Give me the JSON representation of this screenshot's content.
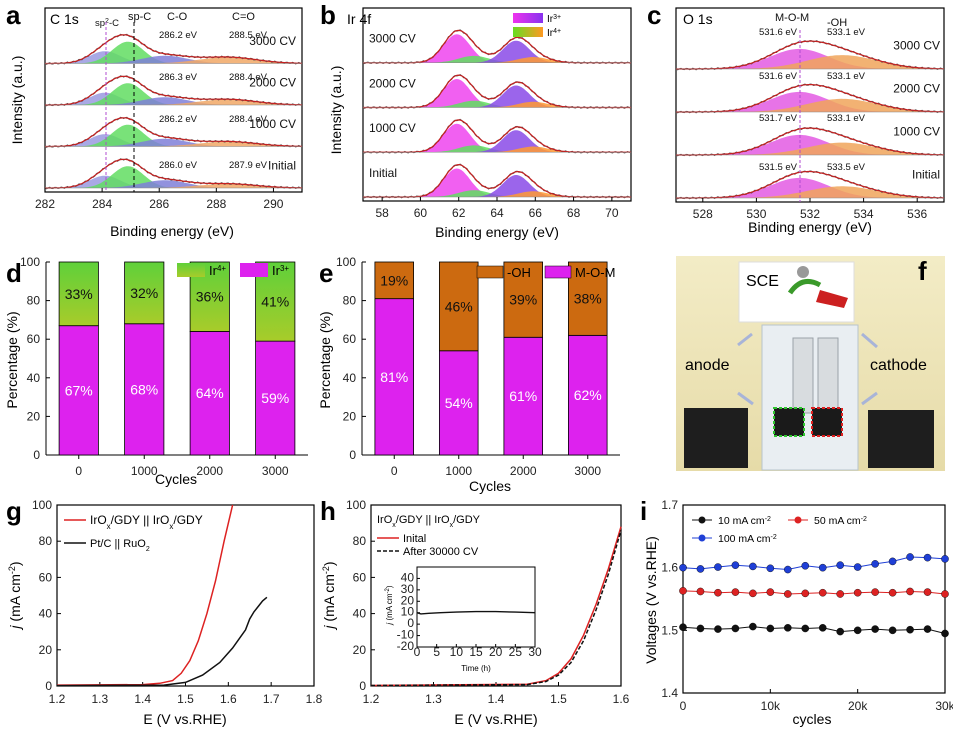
{
  "panels": [
    {
      "id": "a",
      "letter": "a",
      "element": "C 1s",
      "xlabel": "Binding energy (eV)",
      "ylabel": "Intensity (a.u.)",
      "xlim": [
        282,
        291
      ],
      "xticks": [
        "282",
        "284",
        "286",
        "288",
        "290"
      ],
      "x_reversed": false,
      "peaks": [
        "sp2-C",
        "sp-C",
        "C-O",
        "C=O"
      ],
      "spectra": [
        {
          "label": "3000 CV",
          "annotations": [
            "286.2 eV",
            "288.5 eV"
          ]
        },
        {
          "label": "2000 CV",
          "annotations": [
            "286.3 eV",
            "288.4 eV"
          ]
        },
        {
          "label": "1000 CV",
          "annotations": [
            "286.2 eV",
            "288.4 eV"
          ]
        },
        {
          "label": "Initial",
          "annotations": [
            "286.0 eV",
            "287.9 eV"
          ]
        }
      ],
      "peak_colors": [
        "#8a8ad6",
        "#5fd35f",
        "#8a8ad6",
        "#f0a35e"
      ]
    },
    {
      "id": "b",
      "letter": "b",
      "element": "Ir 4f",
      "xlabel": "Binding energy (eV)",
      "ylabel": "Intensity (a.u.)",
      "xlim": [
        57,
        71
      ],
      "xticks": [
        "58",
        "60",
        "62",
        "64",
        "66",
        "68",
        "70"
      ],
      "legend": [
        "Ir3+",
        "Ir4+"
      ],
      "spectra": [
        {
          "label": "3000 CV"
        },
        {
          "label": "2000 CV"
        },
        {
          "label": "1000 CV"
        },
        {
          "label": "Initial"
        }
      ],
      "ir3_colors": [
        "#ee44ee",
        "#8a3ee8"
      ],
      "ir4_colors": [
        "#33dd33",
        "#ff8c1a"
      ]
    },
    {
      "id": "c",
      "letter": "c",
      "element": "O 1s",
      "xlabel": "Binding energy (eV)",
      "ylabel": "",
      "xlim": [
        527,
        537
      ],
      "xticks": [
        "528",
        "530",
        "532",
        "534",
        "536"
      ],
      "peaks": [
        "M-O-M",
        "-OH"
      ],
      "spectra": [
        {
          "label": "3000 CV",
          "annotations": [
            "531.6 eV",
            "533.1 eV"
          ]
        },
        {
          "label": "2000 CV",
          "annotations": [
            "531.6 eV",
            "533.1 eV"
          ]
        },
        {
          "label": "1000 CV",
          "annotations": [
            "531.7 eV",
            "533.1 eV"
          ]
        },
        {
          "label": "Initial",
          "annotations": [
            "531.5 eV",
            "533.5 eV"
          ]
        }
      ]
    }
  ],
  "panel_f": {
    "letter": "f",
    "labels": {
      "sce": "SCE",
      "anode": "anode",
      "cathode": "cathode"
    }
  },
  "panel_letters": {
    "g": "g",
    "h": "h",
    "i": "i"
  },
  "chart_data": [
    {
      "id": "d",
      "type": "bar",
      "stacked": true,
      "categories": [
        "0",
        "1000",
        "2000",
        "3000"
      ],
      "xlabel": "Cycles",
      "ylabel": "Percentage (%)",
      "ylim": [
        0,
        100
      ],
      "yticks": [
        "0",
        "20",
        "40",
        "60",
        "80",
        "100"
      ],
      "series": [
        {
          "name": "Ir3+",
          "values": [
            67,
            68,
            64,
            59
          ],
          "labels": [
            "67%",
            "68%",
            "64%",
            "59%"
          ],
          "color": "#dd22ee"
        },
        {
          "name": "Ir4+",
          "values": [
            33,
            32,
            36,
            41
          ],
          "labels": [
            "33%",
            "32%",
            "36%",
            "41%"
          ],
          "color": "#88cc33"
        }
      ],
      "legend_position": "top"
    },
    {
      "id": "e",
      "type": "bar",
      "stacked": true,
      "categories": [
        "0",
        "1000",
        "2000",
        "3000"
      ],
      "xlabel": "Cycles",
      "ylabel": "Percentage (%)",
      "ylim": [
        0,
        100
      ],
      "yticks": [
        "0",
        "20",
        "40",
        "60",
        "80",
        "100"
      ],
      "series": [
        {
          "name": "M-O-M",
          "values": [
            81,
            54,
            61,
            62
          ],
          "labels": [
            "81%",
            "54%",
            "61%",
            "62%"
          ],
          "color": "#dd22ee"
        },
        {
          "name": "-OH",
          "values": [
            19,
            46,
            39,
            38
          ],
          "labels": [
            "19%",
            "46%",
            "39%",
            "38%"
          ],
          "color": "#cc6a10"
        }
      ],
      "legend_position": "top-right"
    },
    {
      "id": "g",
      "type": "line",
      "xlabel": "E (V vs.RHE)",
      "ylabel": "j (mA cm-2)",
      "xlim": [
        1.2,
        1.8
      ],
      "ylim": [
        0,
        100
      ],
      "xticks": [
        "1.2",
        "1.3",
        "1.4",
        "1.5",
        "1.6",
        "1.7",
        "1.8"
      ],
      "yticks": [
        "0",
        "20",
        "40",
        "60",
        "80",
        "100"
      ],
      "series": [
        {
          "name": "IrOx/GDY || IrOx/GDY",
          "color": "#dd2222",
          "x": [
            1.2,
            1.4,
            1.44,
            1.47,
            1.49,
            1.51,
            1.53,
            1.55,
            1.57,
            1.59,
            1.61
          ],
          "y": [
            0.5,
            0.8,
            1.5,
            3,
            7,
            14,
            25,
            40,
            58,
            80,
            102
          ]
        },
        {
          "name": "Pt/C || RuO2",
          "color": "#111111",
          "x": [
            1.2,
            1.45,
            1.5,
            1.54,
            1.58,
            1.61,
            1.64,
            1.65,
            1.66,
            1.67,
            1.68,
            1.69
          ],
          "y": [
            0.2,
            0.5,
            2,
            6,
            13,
            21,
            31,
            37,
            41,
            44,
            47,
            49
          ]
        }
      ],
      "legend_position": "top-left"
    },
    {
      "id": "h",
      "type": "line",
      "xlabel": "E (V vs.RHE)",
      "ylabel": "j (mA cm-2)",
      "xlim": [
        1.2,
        1.6
      ],
      "ylim": [
        0,
        100
      ],
      "xticks": [
        "1.2",
        "1.3",
        "1.4",
        "1.5",
        "1.6"
      ],
      "yticks": [
        "0",
        "20",
        "40",
        "60",
        "80",
        "100"
      ],
      "legend_title": "IrOx/GDY || IrOx/GDY",
      "series": [
        {
          "name": "Inital",
          "color": "#dd2222",
          "dash": false,
          "x": [
            1.2,
            1.45,
            1.48,
            1.5,
            1.52,
            1.54,
            1.56,
            1.58,
            1.6
          ],
          "y": [
            0.3,
            1,
            3,
            7,
            15,
            28,
            45,
            65,
            88
          ]
        },
        {
          "name": "After 30000 CV",
          "color": "#111111",
          "dash": true,
          "x": [
            1.2,
            1.45,
            1.48,
            1.5,
            1.52,
            1.54,
            1.56,
            1.58,
            1.6
          ],
          "y": [
            0.3,
            0.8,
            2.5,
            6,
            13,
            25,
            42,
            62,
            86
          ]
        }
      ],
      "inset": {
        "xlabel": "Time (h)",
        "ylabel": "j (mA cm-2)",
        "xlim": [
          0,
          30
        ],
        "ylim": [
          -20,
          50
        ],
        "xticks": [
          "0",
          "5",
          "10",
          "15",
          "20",
          "25",
          "30"
        ],
        "yticks": [
          "-20",
          "-10",
          "0",
          "10",
          "20",
          "30",
          "40"
        ],
        "x": [
          0,
          1,
          3,
          6,
          10,
          15,
          20,
          25,
          30
        ],
        "y": [
          10,
          9,
          9.5,
          10,
          10.5,
          11,
          11,
          10.5,
          10
        ]
      }
    },
    {
      "id": "i",
      "type": "scatter",
      "xlabel": "cycles",
      "ylabel": "Voltages (V vs.RHE)",
      "xlim": [
        0,
        30000
      ],
      "ylim": [
        1.4,
        1.7
      ],
      "xticks": [
        "0",
        "10k",
        "20k",
        "30k"
      ],
      "yticks": [
        "1.4",
        "1.5",
        "1.6",
        "1.7"
      ],
      "series": [
        {
          "name": "10 mA cm-2",
          "color": "#111111",
          "x": [
            0,
            2000,
            4000,
            6000,
            8000,
            10000,
            12000,
            14000,
            16000,
            18000,
            20000,
            22000,
            24000,
            26000,
            28000,
            30000
          ],
          "y": [
            1.505,
            1.503,
            1.502,
            1.503,
            1.506,
            1.503,
            1.504,
            1.503,
            1.504,
            1.498,
            1.5,
            1.502,
            1.5,
            1.501,
            1.502,
            1.495
          ]
        },
        {
          "name": "50 mA cm-2",
          "color": "#dd2222",
          "x": [
            0,
            2000,
            4000,
            6000,
            8000,
            10000,
            12000,
            14000,
            16000,
            18000,
            20000,
            22000,
            24000,
            26000,
            28000,
            30000
          ],
          "y": [
            1.563,
            1.562,
            1.56,
            1.561,
            1.559,
            1.561,
            1.558,
            1.559,
            1.56,
            1.558,
            1.56,
            1.561,
            1.56,
            1.562,
            1.561,
            1.558
          ]
        },
        {
          "name": "100 mA cm-2",
          "color": "#1f3fd6",
          "x": [
            0,
            2000,
            4000,
            6000,
            8000,
            10000,
            12000,
            14000,
            16000,
            18000,
            20000,
            22000,
            24000,
            26000,
            28000,
            30000
          ],
          "y": [
            1.6,
            1.598,
            1.601,
            1.604,
            1.602,
            1.599,
            1.597,
            1.603,
            1.6,
            1.604,
            1.601,
            1.606,
            1.61,
            1.617,
            1.616,
            1.614
          ]
        }
      ],
      "legend_position": "top"
    }
  ]
}
